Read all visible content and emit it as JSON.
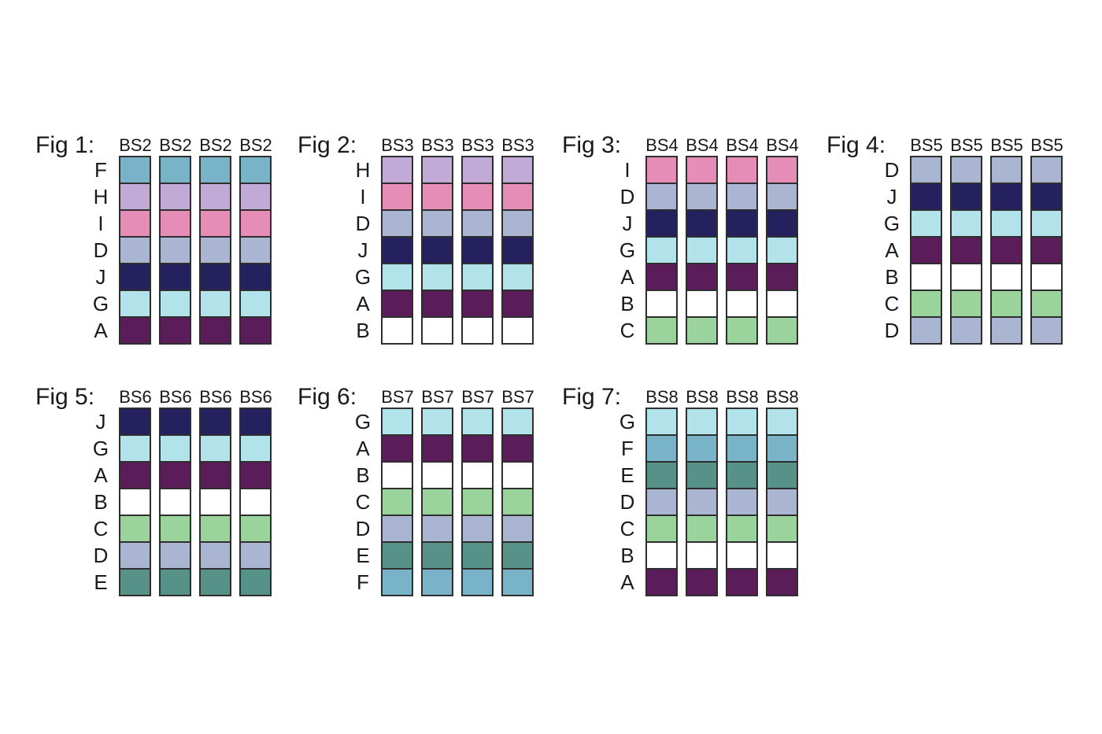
{
  "colors": {
    "A": "#5a1d5a",
    "B": "#ffffff",
    "C": "#9ad49c",
    "D": "#aab5d2",
    "E": "#579289",
    "F": "#78b3c8",
    "G": "#b2e2ea",
    "H": "#c1abd6",
    "I": "#e58cb7",
    "J": "#25215f"
  },
  "figures": [
    {
      "title": "Fig 1:",
      "columns": [
        "BS2",
        "BS2",
        "BS2",
        "BS2"
      ],
      "rows": [
        "F",
        "H",
        "I",
        "D",
        "J",
        "G",
        "A"
      ]
    },
    {
      "title": "Fig 2:",
      "columns": [
        "BS3",
        "BS3",
        "BS3",
        "BS3"
      ],
      "rows": [
        "H",
        "I",
        "D",
        "J",
        "G",
        "A",
        "B"
      ]
    },
    {
      "title": "Fig 3:",
      "columns": [
        "BS4",
        "BS4",
        "BS4",
        "BS4"
      ],
      "rows": [
        "I",
        "D",
        "J",
        "G",
        "A",
        "B",
        "C"
      ]
    },
    {
      "title": "Fig 4:",
      "columns": [
        "BS5",
        "BS5",
        "BS5",
        "BS5"
      ],
      "rows": [
        "D",
        "J",
        "G",
        "A",
        "B",
        "C",
        "D"
      ]
    },
    {
      "title": "Fig 5:",
      "columns": [
        "BS6",
        "BS6",
        "BS6",
        "BS6"
      ],
      "rows": [
        "J",
        "G",
        "A",
        "B",
        "C",
        "D",
        "E"
      ]
    },
    {
      "title": "Fig 6:",
      "columns": [
        "BS7",
        "BS7",
        "BS7",
        "BS7"
      ],
      "rows": [
        "G",
        "A",
        "B",
        "C",
        "D",
        "E",
        "F"
      ]
    },
    {
      "title": "Fig 7:",
      "columns": [
        "BS8",
        "BS8",
        "BS8",
        "BS8"
      ],
      "rows": [
        "G",
        "F",
        "E",
        "D",
        "C",
        "B",
        "A"
      ]
    }
  ]
}
